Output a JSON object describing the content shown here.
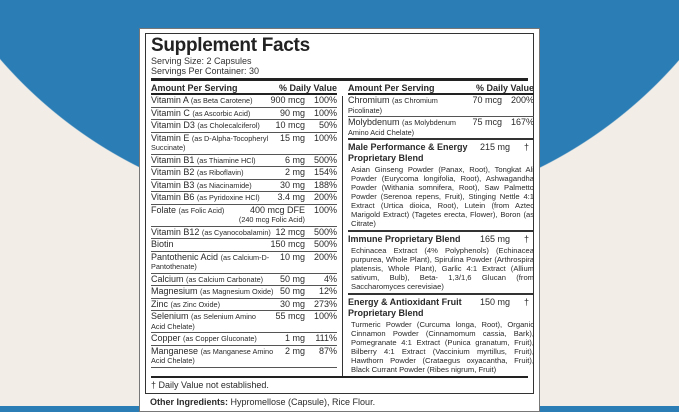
{
  "colors": {
    "background_blue": "#2b7db6",
    "background_cream": "#f2eee7"
  },
  "title": "Supplement Facts",
  "serving_size": "Serving Size: 2 Capsules",
  "servings_per_container": "Servings Per Container: 30",
  "header": {
    "amount": "Amount Per Serving",
    "dv": "% Daily Value"
  },
  "left_rows": [
    {
      "name": "Vitamin A",
      "source": "(as Beta Carotene)",
      "amount": "900 mcg",
      "dv": "100%"
    },
    {
      "name": "Vitamin C",
      "source": "(as Ascorbic Acid)",
      "amount": "90 mg",
      "dv": "100%"
    },
    {
      "name": "Vitamin D3",
      "source": "(as Cholecalciferol)",
      "amount": "10 mcg",
      "dv": "50%"
    },
    {
      "name": "Vitamin E",
      "source": "(as D-Alpha-Tocopheryl Succinate)",
      "amount": "15 mg",
      "dv": "100%"
    },
    {
      "name": "Vitamin B1",
      "source": "(as Thiamine HCl)",
      "amount": "6 mg",
      "dv": "500%"
    },
    {
      "name": "Vitamin B2",
      "source": "(as Riboflavin)",
      "amount": "2 mg",
      "dv": "154%"
    },
    {
      "name": "Vitamin B3",
      "source": "(as Niacinamide)",
      "amount": "30 mg",
      "dv": "188%"
    },
    {
      "name": "Vitamin B6",
      "source": "(as Pyridoxine HCl)",
      "amount": "3.4 mg",
      "dv": "200%"
    },
    {
      "name": "Folate",
      "source": "(as Folic Acid)",
      "amount": "400 mcg DFE",
      "amount2": "(240 mcg Folic Acid)",
      "dv": "100%"
    },
    {
      "name": "Vitamin B12",
      "source": "(as Cyanocobalamin)",
      "amount": "12 mcg",
      "dv": "500%"
    },
    {
      "name": "Biotin",
      "source": "",
      "amount": "150 mcg",
      "dv": "500%"
    },
    {
      "name": "Pantothenic Acid",
      "source": "(as Calcium-D-Pantothenate)",
      "amount": "10 mg",
      "dv": "200%"
    },
    {
      "name": "Calcium",
      "source": "(as Calcium Carbonate)",
      "amount": "50 mg",
      "dv": "4%"
    },
    {
      "name": "Magnesium",
      "source": "(as Magnesium Oxide)",
      "amount": "50 mg",
      "dv": "12%"
    },
    {
      "name": "Zinc",
      "source": "(as Zinc Oxide)",
      "amount": "30 mg",
      "dv": "273%"
    },
    {
      "name": "Selenium",
      "source": "(as Selenium Amino Acid Chelate)",
      "amount": "55 mcg",
      "dv": "100%"
    },
    {
      "name": "Copper",
      "source": "(as Copper Gluconate)",
      "amount": "1 mg",
      "dv": "111%"
    },
    {
      "name": "Manganese",
      "source": "(as Manganese Amino Acid Chelate)",
      "amount": "2 mg",
      "dv": "87%"
    }
  ],
  "right_rows": [
    {
      "name": "Chromium",
      "source": "(as Chromium Picolinate)",
      "amount": "70 mcg",
      "dv": "200%"
    },
    {
      "name": "Molybdenum",
      "source": "(as Molybdenum Amino Acid Chelate)",
      "amount": "75 mcg",
      "dv": "167%"
    }
  ],
  "blends": [
    {
      "name": "Male Performance & Energy Proprietary Blend",
      "amount": "215 mg",
      "dv": "†",
      "ingredients": "Asian Ginseng Powder (Panax, Root), Tongkat Ali Powder (Eurycoma longifolia, Root), Ashwagandha Powder (Withania somnifera, Root), Saw Palmetto Powder (Serenoa repens, Fruit), Stinging Nettle 4:1 Extract (Urtica dioica, Root), Lutein (from Aztec Marigold Extract) (Tagetes erecta, Flower), Boron (as Citrate)"
    },
    {
      "name": "Immune Proprietary Blend",
      "amount": "165 mg",
      "dv": "†",
      "ingredients": "Echinacea Extract (4% Polyphenols) (Echinacea purpurea, Whole Plant), Spirulina Powder (Arthrospira platensis, Whole Plant), Garlic 4:1 Extract (Allium sativum, Bulb), Beta- 1,3/1,6 Glucan (from Saccharomyces cerevisiae)"
    },
    {
      "name": "Energy & Antioxidant Fruit Proprietary Blend",
      "amount": "150 mg",
      "dv": "†",
      "ingredients": "Turmeric Powder (Curcuma longa, Root), Organic Cinnamon Powder (Cinnamomum cassia, Bark), Pomegranate 4:1 Extract (Punica granatum, Fruit), Bilberry 4:1 Extract (Vaccinium myrtillus, Fruit), Hawthorn Powder (Crataegus oxyacantha, Fruit), Black Currant Powder (Ribes nigrum, Fruit)"
    }
  ],
  "footnote": "† Daily Value not established.",
  "other_label": "Other Ingredients:",
  "other_text": " Hypromellose (Capsule), Rice Flour."
}
